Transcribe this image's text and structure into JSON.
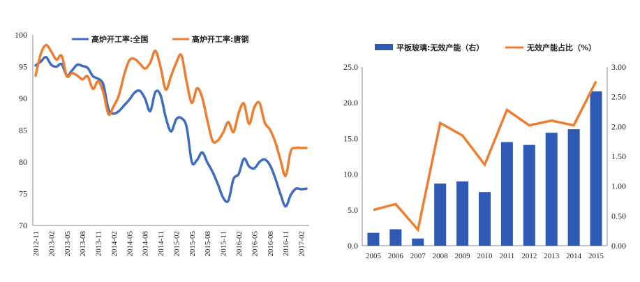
{
  "chart_data": [
    {
      "type": "line",
      "title": "",
      "xlabel": "",
      "ylabel": "",
      "ylim": [
        70,
        100
      ],
      "yticks": [
        70,
        75,
        80,
        85,
        90,
        95,
        100
      ],
      "grid": false,
      "legend_position": "top",
      "x_tick_labels": [
        "2012-11",
        "2013-02",
        "2013-05",
        "2013-08",
        "2013-11",
        "2014-02",
        "2014-05",
        "2014-08",
        "2014-11",
        "2015-02",
        "2015-05",
        "2015-08",
        "2015-11",
        "2016-02",
        "2016-05",
        "2016-08",
        "2016-11",
        "2017-02"
      ],
      "x": [
        "2012-11",
        "2012-12",
        "2013-01",
        "2013-02",
        "2013-03",
        "2013-04",
        "2013-05",
        "2013-06",
        "2013-07",
        "2013-08",
        "2013-09",
        "2013-10",
        "2013-11",
        "2013-12",
        "2014-01",
        "2014-02",
        "2014-03",
        "2014-04",
        "2014-05",
        "2014-06",
        "2014-07",
        "2014-08",
        "2014-09",
        "2014-10",
        "2014-11",
        "2014-12",
        "2015-01",
        "2015-02",
        "2015-03",
        "2015-04",
        "2015-05",
        "2015-06",
        "2015-07",
        "2015-08",
        "2015-09",
        "2015-10",
        "2015-11",
        "2015-12",
        "2016-01",
        "2016-02",
        "2016-03",
        "2016-04",
        "2016-05",
        "2016-06",
        "2016-07",
        "2016-08",
        "2016-09",
        "2016-10",
        "2016-11",
        "2016-12",
        "2017-01",
        "2017-02",
        "2017-03"
      ],
      "series": [
        {
          "name": "高炉开工率:全国",
          "color": "#3E6CC0",
          "values": [
            95.2,
            95.8,
            96.5,
            95.3,
            95.0,
            95.4,
            93.6,
            94.4,
            95.3,
            95.1,
            94.8,
            93.5,
            93.1,
            92.2,
            88.3,
            87.6,
            88.0,
            88.9,
            89.8,
            90.9,
            91.2,
            90.0,
            88.0,
            91.0,
            90.5,
            87.0,
            84.8,
            86.7,
            86.9,
            85.5,
            80.0,
            80.3,
            81.5,
            79.9,
            78.4,
            76.5,
            74.4,
            73.9,
            77.3,
            78.1,
            80.5,
            79.3,
            79.0,
            80.0,
            80.4,
            79.5,
            77.5,
            75.0,
            73.0,
            74.8,
            75.8,
            75.7,
            75.8
          ]
        },
        {
          "name": "高炉开工率:唐钢",
          "color": "#ED7D31",
          "values": [
            93.6,
            97.0,
            98.4,
            97.4,
            96.1,
            96.7,
            93.5,
            94.0,
            93.6,
            93.0,
            93.5,
            91.5,
            92.7,
            91.0,
            87.5,
            88.8,
            90.5,
            93.7,
            96.0,
            96.2,
            95.5,
            94.7,
            95.6,
            97.5,
            94.9,
            91.4,
            93.5,
            95.6,
            96.8,
            92.6,
            89.3,
            91.6,
            90.1,
            86.5,
            83.3,
            83.4,
            84.6,
            86.3,
            84.7,
            87.7,
            89.2,
            86.0,
            88.6,
            89.3,
            86.2,
            85.1,
            83.2,
            80.4,
            77.8,
            81.7,
            82.2,
            82.2,
            82.2
          ]
        }
      ]
    },
    {
      "type": "bar",
      "title": "",
      "xlabel": "",
      "ylabel": "",
      "categories": [
        "2005",
        "2006",
        "2007",
        "2008",
        "2009",
        "2010",
        "2011",
        "2012",
        "2013",
        "2014",
        "2015"
      ],
      "ylim": [
        0,
        25
      ],
      "yticks": [
        "0.0",
        "5.0",
        "10.0",
        "15.0",
        "20.0",
        "25.0"
      ],
      "y2lim": [
        0,
        3
      ],
      "y2ticks": [
        "0.00",
        "0.50",
        "1.00",
        "1.50",
        "2.00",
        "2.50",
        "3.00"
      ],
      "grid": false,
      "legend_position": "top",
      "series": [
        {
          "name": "平板玻璃:无效产能（右）",
          "type": "bar",
          "axis": "left",
          "color": "#2E59B5",
          "values": [
            1.8,
            2.3,
            1.0,
            8.7,
            9.0,
            7.5,
            14.5,
            14.1,
            15.8,
            16.3,
            21.6
          ]
        },
        {
          "name": "无效产能占比（%）",
          "type": "line",
          "axis": "right",
          "color": "#ED7D31",
          "values": [
            0.6,
            0.7,
            0.27,
            2.06,
            1.85,
            1.36,
            2.28,
            2.02,
            2.1,
            2.02,
            2.76
          ]
        }
      ]
    }
  ]
}
